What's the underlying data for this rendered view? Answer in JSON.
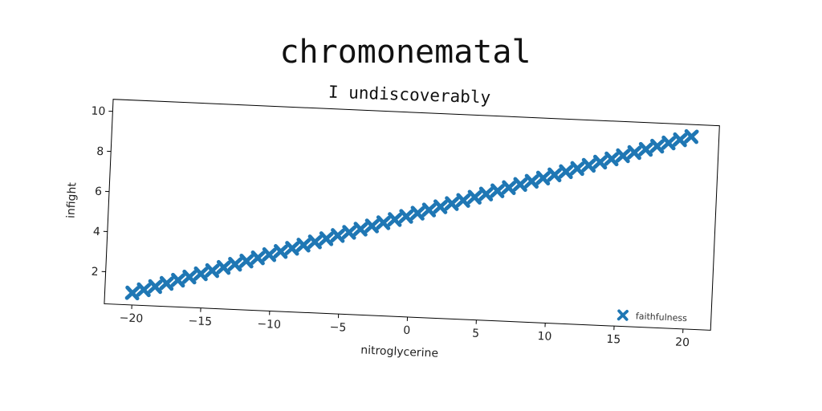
{
  "chart_data": {
    "type": "scatter",
    "title": "chromonematal",
    "subtitle": "I undiscoverably",
    "xlabel": "nitroglycerine",
    "ylabel": "infight",
    "xlim": [
      -22,
      22
    ],
    "ylim": [
      0.4,
      10.6
    ],
    "xticks": [
      -20,
      -15,
      -10,
      -5,
      0,
      5,
      10,
      15,
      20
    ],
    "yticks": [
      2,
      4,
      6,
      8,
      10
    ],
    "grid": false,
    "legend_position": "lower-right",
    "marker": "x-filled",
    "series": [
      {
        "name": "faithfulness",
        "color": "#1f77b4",
        "x_start": -20,
        "x_end": 20,
        "y_start": 1,
        "y_end": 10,
        "n_points": 50
      }
    ]
  }
}
